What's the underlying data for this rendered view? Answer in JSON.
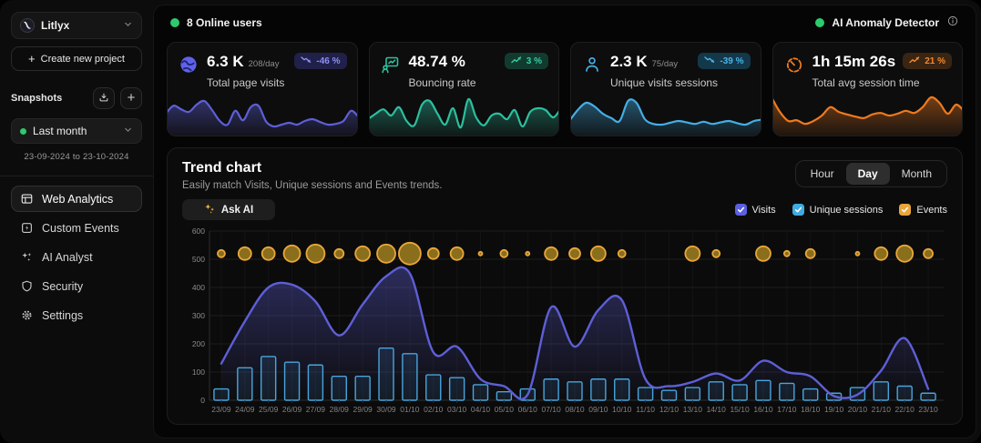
{
  "sidebar": {
    "project_name": "Litlyx",
    "create_project_label": "Create new project",
    "snapshots_label": "Snapshots",
    "snapshot_selected": "Last month",
    "date_range": "23-09-2024 to 23-10-2024",
    "nav": [
      {
        "label": "Web Analytics",
        "icon": "browser-icon",
        "active": true
      },
      {
        "label": "Custom Events",
        "icon": "bolt-square-icon",
        "active": false
      },
      {
        "label": "AI Analyst",
        "icon": "sparkles-icon",
        "active": false
      },
      {
        "label": "Security",
        "icon": "shield-icon",
        "active": false
      },
      {
        "label": "Settings",
        "icon": "gear-icon",
        "active": false
      }
    ]
  },
  "header": {
    "online_users": "8 Online users",
    "anomaly_detector": "AI Anomaly Detector",
    "status_color": "#2bcb6e"
  },
  "stat_cards": [
    {
      "value": "6.3 K",
      "per_day": "208/day",
      "label": "Total page visits",
      "badge": "-46 %",
      "trend": "down",
      "icon": "globe-icon",
      "color": "#5E5FD6",
      "badge_bg": "#20204a",
      "badge_text": "#8d8ff0",
      "sparkline": [
        0.5,
        0.72,
        0.62,
        0.55,
        0.75,
        0.85,
        0.6,
        0.3,
        0.2,
        0.58,
        0.32,
        0.68,
        0.72,
        0.28,
        0.15,
        0.2,
        0.25,
        0.2,
        0.3,
        0.35,
        0.27,
        0.2,
        0.22,
        0.3,
        0.58,
        0.4
      ]
    },
    {
      "value": "48.74 %",
      "per_day": "",
      "label": "Bouncing rate",
      "badge": "3 %",
      "trend": "up",
      "icon": "bounce-icon",
      "color": "#2CBF9F",
      "badge_bg": "#123b30",
      "badge_text": "#35ce9c",
      "sparkline": [
        0.35,
        0.5,
        0.62,
        0.45,
        0.68,
        0.3,
        0.18,
        0.75,
        0.85,
        0.5,
        0.2,
        0.65,
        0.12,
        0.9,
        0.4,
        0.18,
        0.45,
        0.5,
        0.35,
        0.6,
        0.15,
        0.55,
        0.65,
        0.6,
        0.4,
        0.65
      ]
    },
    {
      "value": "2.3 K",
      "per_day": "75/day",
      "label": "Unique visits sessions",
      "badge": "-39 %",
      "trend": "down",
      "icon": "user-icon",
      "color": "#45AEE5",
      "badge_bg": "#133849",
      "badge_text": "#4fb3e8",
      "sparkline": [
        0.3,
        0.6,
        0.8,
        0.7,
        0.5,
        0.38,
        0.3,
        0.85,
        0.8,
        0.35,
        0.22,
        0.2,
        0.25,
        0.3,
        0.26,
        0.22,
        0.28,
        0.22,
        0.26,
        0.3,
        0.24,
        0.2,
        0.3,
        0.34
      ]
    },
    {
      "value": "1h 15m 26s",
      "per_day": "",
      "label": "Total avg session time",
      "badge": "21 %",
      "trend": "up",
      "icon": "timer-icon",
      "color": "#EE7A1F",
      "badge_bg": "#3a2412",
      "badge_text": "#f08a2e",
      "sparkline": [
        0.95,
        0.55,
        0.3,
        0.32,
        0.22,
        0.3,
        0.45,
        0.68,
        0.55,
        0.48,
        0.42,
        0.38,
        0.48,
        0.52,
        0.45,
        0.5,
        0.58,
        0.52,
        0.68,
        0.95,
        0.8,
        0.5,
        0.75,
        0.55
      ]
    }
  ],
  "trend": {
    "title": "Trend chart",
    "subtitle": "Easily match Visits, Unique sessions and Events trends.",
    "ask_ai_label": "Ask AI",
    "range_options": [
      "Hour",
      "Day",
      "Month"
    ],
    "selected_range": "Day",
    "legend": [
      {
        "label": "Visits",
        "color": "#5B5FE0",
        "checked": true
      },
      {
        "label": "Unique sessions",
        "color": "#3FABE2",
        "checked": true
      },
      {
        "label": "Events",
        "color": "#E9A63A",
        "checked": true
      }
    ]
  },
  "chart_data": {
    "type": "mixed",
    "title": "Trend chart",
    "x": [
      "23/09",
      "24/09",
      "25/09",
      "26/09",
      "27/09",
      "28/09",
      "29/09",
      "30/09",
      "01/10",
      "02/10",
      "03/10",
      "04/10",
      "05/10",
      "06/10",
      "07/10",
      "08/10",
      "09/10",
      "10/10",
      "11/10",
      "12/10",
      "13/10",
      "14/10",
      "15/10",
      "16/10",
      "17/10",
      "18/10",
      "19/10",
      "20/10",
      "21/10",
      "22/10",
      "23/10"
    ],
    "ylim": [
      0,
      600
    ],
    "yticks": [
      0,
      100,
      200,
      300,
      400,
      500,
      600
    ],
    "grid": true,
    "series": [
      {
        "name": "Visits",
        "type": "area-line",
        "color": "#5E5FD6",
        "values": [
          130,
          280,
          400,
          410,
          350,
          230,
          340,
          440,
          450,
          170,
          190,
          75,
          50,
          20,
          330,
          190,
          320,
          355,
          75,
          50,
          65,
          95,
          70,
          140,
          100,
          85,
          15,
          20,
          105,
          220,
          40
        ]
      },
      {
        "name": "Unique sessions",
        "type": "bar",
        "color": "#49A4DC",
        "values": [
          40,
          115,
          155,
          135,
          125,
          85,
          85,
          185,
          165,
          90,
          80,
          55,
          30,
          40,
          75,
          65,
          75,
          75,
          45,
          35,
          45,
          65,
          55,
          70,
          60,
          40,
          25,
          45,
          65,
          50,
          25
        ]
      },
      {
        "name": "Events",
        "type": "bubble",
        "color": "#E9A63A",
        "bubble_y": 520,
        "values": [
          20,
          35,
          35,
          45,
          50,
          25,
          40,
          50,
          60,
          30,
          35,
          10,
          20,
          10,
          35,
          30,
          40,
          20,
          0,
          0,
          40,
          20,
          0,
          40,
          15,
          25,
          0,
          10,
          35,
          45,
          25
        ],
        "sizes": [
          4,
          7,
          7,
          9,
          10,
          5,
          8,
          10,
          12,
          6,
          7,
          2,
          4,
          2,
          7,
          6,
          8,
          4,
          0,
          0,
          8,
          4,
          0,
          8,
          3,
          5,
          0,
          2,
          7,
          9,
          5
        ]
      }
    ]
  }
}
